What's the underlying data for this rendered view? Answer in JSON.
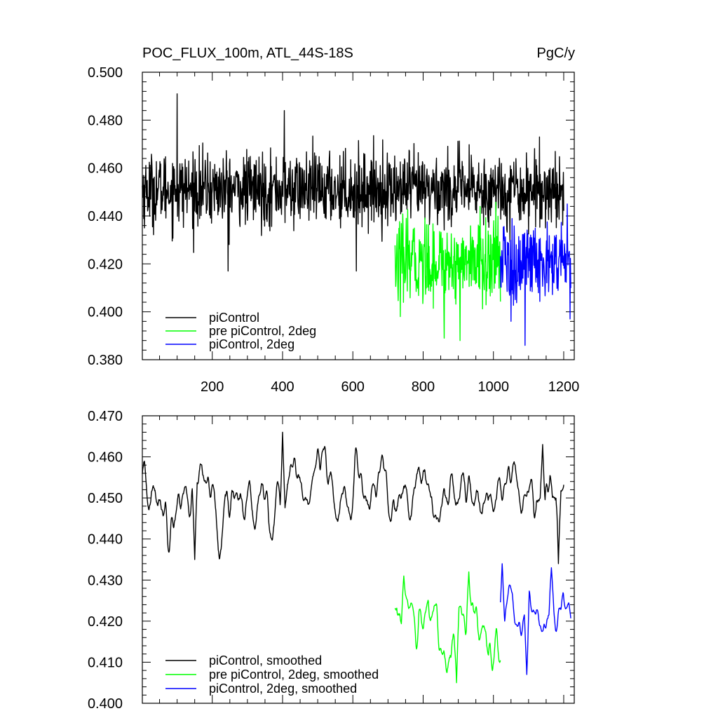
{
  "header": {
    "title": "POC_FLUX_100m, ATL_44S-18S",
    "units": "PgC/y"
  },
  "chart_data": [
    {
      "type": "line",
      "xlim": [
        1,
        1230
      ],
      "ylim": [
        0.38,
        0.5
      ],
      "yticks": [
        "0.380",
        "0.400",
        "0.420",
        "0.440",
        "0.460",
        "0.480",
        "0.500"
      ],
      "xticks": [
        "200",
        "400",
        "600",
        "800",
        "1000",
        "1200"
      ],
      "legend_position": "bottom-left",
      "series": [
        {
          "name": "piControl",
          "color": "#000000",
          "x_start": 1,
          "x_end": 1200,
          "mean": 0.451,
          "noise": 0.0075,
          "extremes": [
            [
              100,
              0.491
            ],
            [
              245,
              0.417
            ],
            [
              405,
              0.484
            ],
            [
              610,
              0.417
            ]
          ]
        },
        {
          "name": "pre piControl, 2deg",
          "color": "#00ff00",
          "x_start": 720,
          "x_end": 1020,
          "mean": 0.421,
          "noise": 0.0085,
          "extremes": [
            [
              735,
              0.398
            ],
            [
              860,
              0.389
            ],
            [
              905,
              0.388
            ],
            [
              1000,
              0.433
            ]
          ]
        },
        {
          "name": "piControl, 2deg",
          "color": "#0000ff",
          "x_start": 1020,
          "x_end": 1220,
          "mean": 0.42,
          "noise": 0.0085,
          "extremes": [
            [
              1090,
              0.386
            ],
            [
              1050,
              0.396
            ],
            [
              1210,
              0.445
            ],
            [
              1218,
              0.397
            ]
          ]
        }
      ]
    },
    {
      "type": "line",
      "xlim": [
        1,
        1230
      ],
      "ylim": [
        0.4,
        0.47
      ],
      "yticks": [
        "0.400",
        "0.410",
        "0.420",
        "0.430",
        "0.440",
        "0.450",
        "0.460",
        "0.470"
      ],
      "xticks": [],
      "legend_position": "bottom-left",
      "series": [
        {
          "name": "piControl, smoothed",
          "color": "#000000",
          "x_start": 1,
          "x_end": 1200,
          "mean": 0.4505,
          "noise": 0.0045,
          "extremes": [
            [
              150,
              0.435
            ],
            [
              400,
              0.466
            ],
            [
              1140,
              0.463
            ],
            [
              1185,
              0.434
            ]
          ]
        },
        {
          "name": "pre piControl, 2deg, smoothed",
          "color": "#00ff00",
          "x_start": 720,
          "x_end": 1020,
          "mean": 0.419,
          "noise": 0.005,
          "extremes": [
            [
              745,
              0.431
            ],
            [
              895,
              0.405
            ],
            [
              930,
              0.432
            ]
          ]
        },
        {
          "name": "piControl, 2deg, smoothed",
          "color": "#0000ff",
          "x_start": 1020,
          "x_end": 1220,
          "mean": 0.421,
          "noise": 0.0035,
          "extremes": [
            [
              1025,
              0.434
            ],
            [
              1095,
              0.407
            ],
            [
              1165,
              0.433
            ]
          ]
        }
      ]
    }
  ]
}
